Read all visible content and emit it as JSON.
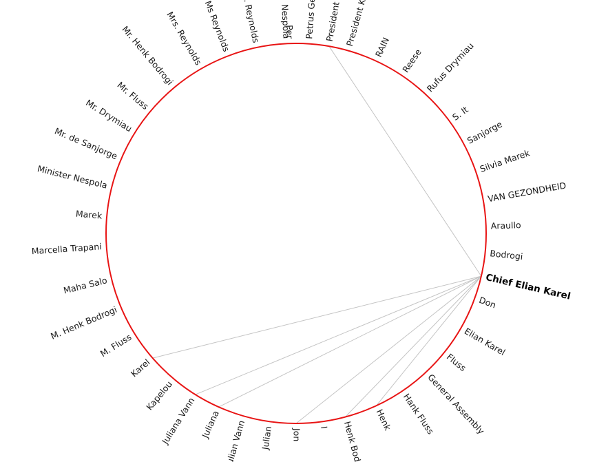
{
  "diagram": {
    "type": "radial-network",
    "ring_color": "#e81414",
    "edge_color": "#c4c4c4",
    "focus_node": "Chief Elian Karel",
    "nodes": [
      {
        "label": "Per",
        "angle": -92
      },
      {
        "label": "Petrus Ge",
        "angle": -86
      },
      {
        "label": "President A",
        "angle": -80
      },
      {
        "label": "President Kap",
        "angle": -74
      },
      {
        "label": "RAIN",
        "angle": -65
      },
      {
        "label": "Reese",
        "angle": -56
      },
      {
        "label": "Rufus Drymiau",
        "angle": -47
      },
      {
        "label": "S. It",
        "angle": -36
      },
      {
        "label": "Sanjorge",
        "angle": -28
      },
      {
        "label": "Silvia Marek",
        "angle": -19
      },
      {
        "label": "VAN GEZONDHEID",
        "angle": -10
      },
      {
        "label": "Araullo",
        "angle": -2
      },
      {
        "label": "Bodrogi",
        "angle": 6
      },
      {
        "label": "Chief Elian Karel",
        "angle": 13
      },
      {
        "label": "Don",
        "angle": 20
      },
      {
        "label": "Elian Karel",
        "angle": 30
      },
      {
        "label": "Fluss",
        "angle": 39
      },
      {
        "label": "General Assembly",
        "angle": 47
      },
      {
        "label": "Hank Fluss",
        "angle": 56
      },
      {
        "label": "Henk",
        "angle": 65
      },
      {
        "label": "Henk Bodr",
        "angle": 75
      },
      {
        "label": "I",
        "angle": 82
      },
      {
        "label": "Jon",
        "angle": 90
      },
      {
        "label": "Julian",
        "angle": 98
      },
      {
        "label": "Julian Vann",
        "angle": 106
      },
      {
        "label": "Juliana",
        "angle": 114
      },
      {
        "label": "Juliana Vann",
        "angle": 122
      },
      {
        "label": "Kapelou",
        "angle": 130
      },
      {
        "label": "Karel",
        "angle": 139
      },
      {
        "label": "M. Fluss",
        "angle": 148
      },
      {
        "label": "M. Henk Bodrogi",
        "angle": 157
      },
      {
        "label": "Maha Salo",
        "angle": 166
      },
      {
        "label": "Marcella Trapani",
        "angle": 176
      },
      {
        "label": "Marek",
        "angle": 185
      },
      {
        "label": "Minister Nespola",
        "angle": 194
      },
      {
        "label": "Mr. de Sanjorge",
        "angle": 203
      },
      {
        "label": "Mr. Drymiau",
        "angle": 212
      },
      {
        "label": "Mr. Fluss",
        "angle": 220
      },
      {
        "label": "Mr. Henk Bodrogi",
        "angle": 230
      },
      {
        "label": "Mrs. Reynolds",
        "angle": 240
      },
      {
        "label": "Ms Reynolds",
        "angle": 249
      },
      {
        "label": "Ms. Reynolds",
        "angle": 258
      },
      {
        "label": "Nespola",
        "angle": 267
      }
    ],
    "edges": [
      [
        "Chief Elian Karel",
        "President A"
      ],
      [
        "Chief Elian Karel",
        "Karel"
      ],
      [
        "Chief Elian Karel",
        "Juliana Vann"
      ],
      [
        "Chief Elian Karel",
        "Juliana"
      ],
      [
        "Chief Elian Karel",
        "Jon"
      ],
      [
        "Chief Elian Karel",
        "Henk Bodr"
      ],
      [
        "Chief Elian Karel",
        "Henk"
      ]
    ]
  }
}
